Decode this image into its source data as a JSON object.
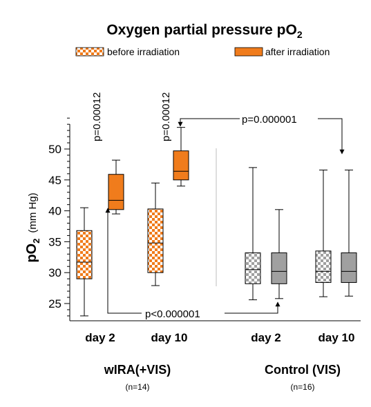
{
  "chart_data": {
    "type": "box",
    "title_main": "Oxygen partial pressure pO",
    "title_sub": "2",
    "legend": [
      {
        "label": "before irradiation",
        "pattern": "checker-orange"
      },
      {
        "label": "after irradiation",
        "pattern": "solid-orange"
      }
    ],
    "ylabel_main": "pO",
    "ylabel_sub": "2",
    "ylabel_unit": "(mm Hg)",
    "ylim": [
      23,
      55
    ],
    "yticks": [
      25,
      30,
      35,
      40,
      45,
      50
    ],
    "ytick_labels": [
      "25",
      "30",
      "35",
      "40",
      "45",
      "50"
    ],
    "groups": [
      {
        "label": "wIRA(+VIS)",
        "n": "(n=14)"
      },
      {
        "label": "Control (VIS)",
        "n": "(n=16)"
      }
    ],
    "xtick_labels": [
      "day 2",
      "day 10",
      "day 2",
      "day 10"
    ],
    "boxes": [
      {
        "name": "wIRA day 2 before",
        "style": "checker-orange",
        "min": 23.0,
        "q1": 29.0,
        "median": 31.7,
        "q3": 36.8,
        "max": 40.5
      },
      {
        "name": "wIRA day 2 after",
        "style": "solid-orange",
        "min": 39.5,
        "q1": 40.2,
        "median": 41.7,
        "q3": 45.9,
        "max": 48.2
      },
      {
        "name": "wIRA day 10 before",
        "style": "checker-orange",
        "min": 27.9,
        "q1": 30.0,
        "median": 34.8,
        "q3": 40.3,
        "max": 44.5
      },
      {
        "name": "wIRA day 10 after",
        "style": "solid-orange",
        "min": 44.0,
        "q1": 45.0,
        "median": 46.4,
        "q3": 49.7,
        "max": 53.5
      },
      {
        "name": "Control day 2 before",
        "style": "checker-gray",
        "min": 25.6,
        "q1": 28.2,
        "median": 30.5,
        "q3": 33.2,
        "max": 47.0
      },
      {
        "name": "Control day 2 after",
        "style": "solid-gray",
        "min": 25.8,
        "q1": 28.2,
        "median": 30.2,
        "q3": 33.2,
        "max": 40.2
      },
      {
        "name": "Control day 10 before",
        "style": "checker-gray",
        "min": 26.1,
        "q1": 28.4,
        "median": 30.2,
        "q3": 33.5,
        "max": 46.6
      },
      {
        "name": "Control day 10 after",
        "style": "solid-gray",
        "min": 26.2,
        "q1": 28.4,
        "median": 30.2,
        "q3": 33.2,
        "max": 46.6
      }
    ],
    "annotations": [
      {
        "text": "p=0.00012",
        "orientation": "vertical"
      },
      {
        "text": "p=0.00012",
        "orientation": "vertical"
      },
      {
        "text": "p=0.000001",
        "orientation": "horizontal"
      },
      {
        "text": "p<0.000001",
        "orientation": "horizontal"
      }
    ],
    "colors": {
      "orange": "#f07c1c",
      "gray": "#a0a0a0",
      "axis": "#000000",
      "divider": "#c8c8c8"
    }
  }
}
